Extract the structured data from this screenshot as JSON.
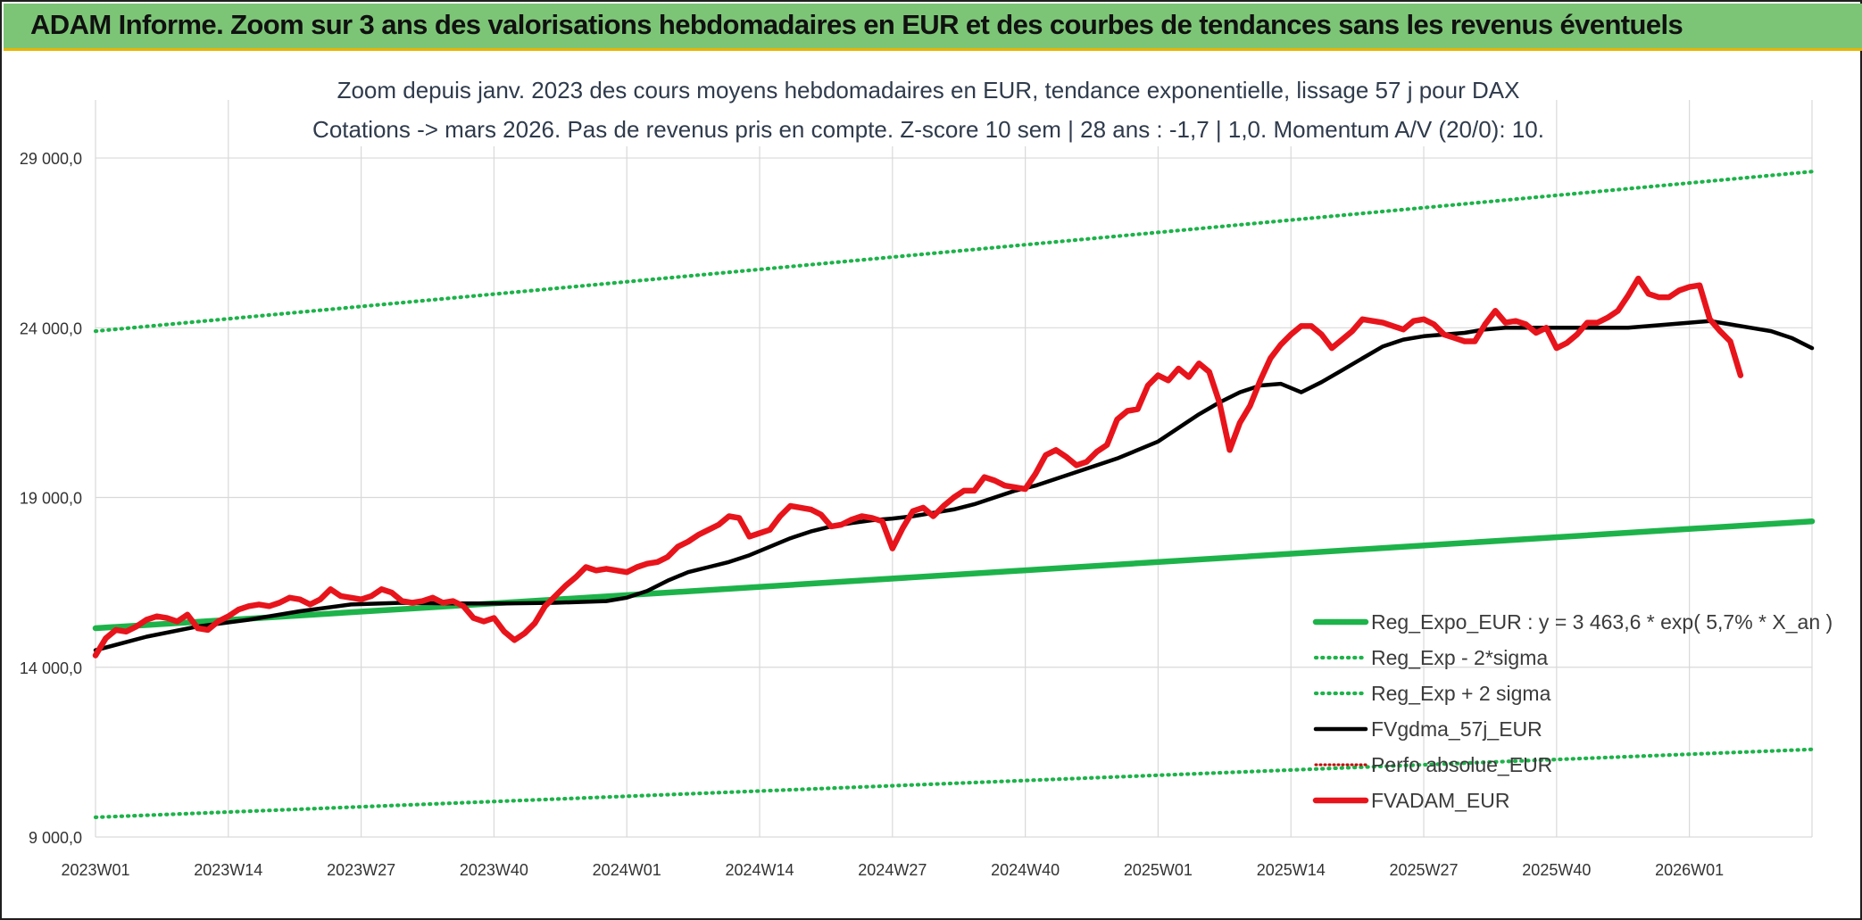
{
  "header": {
    "banner": "ADAM Informe. Zoom sur 3 ans des valorisations hebdomadaires en EUR et des courbes de tendances sans les revenus éventuels"
  },
  "chart_data": {
    "type": "line",
    "title": "Zoom depuis janv. 2023 des cours moyens hebdomadaires en EUR, tendance exponentielle, lissage 57 j pour DAX",
    "subtitle": "Cotations -> mars 2026. Pas de revenus pris en compte. Z-score 10 sem | 28 ans : -1,7 | 1,0. Momentum A/V (20/0): 10.",
    "xlabel": "",
    "ylabel": "",
    "ylim": [
      9000,
      30500
    ],
    "y_ticks": [
      9000,
      14000,
      19000,
      24000,
      29000
    ],
    "y_tick_labels": [
      "9 000,0",
      "14 000,0",
      "19 000,0",
      "24 000,0",
      "29 000,0"
    ],
    "x_tick_labels": [
      "2023W01",
      "2023W14",
      "2023W27",
      "2023W40",
      "2024W01",
      "2024W14",
      "2024W27",
      "2024W40",
      "2025W01",
      "2025W14",
      "2025W27",
      "2025W40",
      "2026W01"
    ],
    "x_tick_index": [
      0,
      13,
      26,
      39,
      52,
      65,
      78,
      91,
      104,
      117,
      130,
      143,
      156
    ],
    "x_count": 169,
    "grid": true,
    "legend_position": "bottom-right",
    "series": [
      {
        "name": "Reg_Expo_EUR : y = 3 463,6 * exp( 5,7% *  X_an )",
        "color": "#1db34a",
        "style": "solid-thick",
        "points": [
          [
            0,
            15150
          ],
          [
            168,
            18300
          ]
        ]
      },
      {
        "name": "Reg_Exp - 2*sigma",
        "color": "#1db34a",
        "style": "dotted",
        "points": [
          [
            0,
            9580
          ],
          [
            168,
            11580
          ]
        ]
      },
      {
        "name": "Reg_Exp + 2 sigma",
        "color": "#1db34a",
        "style": "dotted",
        "points": [
          [
            0,
            23900
          ],
          [
            168,
            28600
          ]
        ]
      },
      {
        "name": "FVgdma_57j_EUR",
        "color": "#000000",
        "style": "solid",
        "points": [
          [
            0,
            14500
          ],
          [
            5,
            14900
          ],
          [
            10,
            15200
          ],
          [
            15,
            15400
          ],
          [
            20,
            15650
          ],
          [
            25,
            15850
          ],
          [
            30,
            15900
          ],
          [
            35,
            15880
          ],
          [
            40,
            15880
          ],
          [
            45,
            15900
          ],
          [
            50,
            15950
          ],
          [
            52,
            16050
          ],
          [
            54,
            16250
          ],
          [
            56,
            16550
          ],
          [
            58,
            16800
          ],
          [
            60,
            16950
          ],
          [
            62,
            17100
          ],
          [
            64,
            17300
          ],
          [
            66,
            17550
          ],
          [
            68,
            17800
          ],
          [
            70,
            18000
          ],
          [
            72,
            18150
          ],
          [
            74,
            18250
          ],
          [
            76,
            18330
          ],
          [
            78,
            18380
          ],
          [
            80,
            18450
          ],
          [
            82,
            18550
          ],
          [
            84,
            18650
          ],
          [
            86,
            18800
          ],
          [
            88,
            19000
          ],
          [
            90,
            19200
          ],
          [
            92,
            19350
          ],
          [
            94,
            19550
          ],
          [
            96,
            19750
          ],
          [
            98,
            19950
          ],
          [
            100,
            20150
          ],
          [
            102,
            20400
          ],
          [
            104,
            20650
          ],
          [
            106,
            21050
          ],
          [
            108,
            21450
          ],
          [
            110,
            21800
          ],
          [
            112,
            22100
          ],
          [
            114,
            22300
          ],
          [
            116,
            22350
          ],
          [
            118,
            22100
          ],
          [
            120,
            22400
          ],
          [
            122,
            22750
          ],
          [
            124,
            23100
          ],
          [
            126,
            23450
          ],
          [
            128,
            23650
          ],
          [
            130,
            23750
          ],
          [
            132,
            23800
          ],
          [
            134,
            23850
          ],
          [
            136,
            23950
          ],
          [
            138,
            24000
          ],
          [
            140,
            24000
          ],
          [
            142,
            24000
          ],
          [
            144,
            24000
          ],
          [
            146,
            24000
          ],
          [
            148,
            24000
          ],
          [
            150,
            24000
          ],
          [
            152,
            24050
          ],
          [
            154,
            24100
          ],
          [
            156,
            24150
          ],
          [
            158,
            24200
          ],
          [
            160,
            24100
          ],
          [
            162,
            24000
          ],
          [
            164,
            23900
          ],
          [
            166,
            23700
          ],
          [
            168,
            23400
          ]
        ]
      },
      {
        "name": "Perfo absolue_EUR",
        "color": "#c00000",
        "style": "dotted-thin",
        "points": []
      },
      {
        "name": "FVADAM_EUR",
        "color": "#e8141b",
        "style": "solid-thick",
        "points": [
          [
            0,
            14350
          ],
          [
            1,
            14850
          ],
          [
            2,
            15100
          ],
          [
            3,
            15050
          ],
          [
            4,
            15200
          ],
          [
            5,
            15400
          ],
          [
            6,
            15500
          ],
          [
            7,
            15450
          ],
          [
            8,
            15350
          ],
          [
            9,
            15550
          ],
          [
            10,
            15150
          ],
          [
            11,
            15100
          ],
          [
            12,
            15350
          ],
          [
            13,
            15500
          ],
          [
            14,
            15700
          ],
          [
            15,
            15800
          ],
          [
            16,
            15850
          ],
          [
            17,
            15800
          ],
          [
            18,
            15900
          ],
          [
            19,
            16050
          ],
          [
            20,
            16000
          ],
          [
            21,
            15850
          ],
          [
            22,
            16000
          ],
          [
            23,
            16300
          ],
          [
            24,
            16100
          ],
          [
            25,
            16050
          ],
          [
            26,
            16000
          ],
          [
            27,
            16100
          ],
          [
            28,
            16300
          ],
          [
            29,
            16200
          ],
          [
            30,
            15950
          ],
          [
            31,
            15900
          ],
          [
            32,
            15950
          ],
          [
            33,
            16050
          ],
          [
            34,
            15900
          ],
          [
            35,
            15950
          ],
          [
            36,
            15800
          ],
          [
            37,
            15450
          ],
          [
            38,
            15350
          ],
          [
            39,
            15450
          ],
          [
            40,
            15050
          ],
          [
            41,
            14800
          ],
          [
            42,
            15000
          ],
          [
            43,
            15300
          ],
          [
            44,
            15800
          ],
          [
            45,
            16100
          ],
          [
            46,
            16400
          ],
          [
            47,
            16650
          ],
          [
            48,
            16950
          ],
          [
            49,
            16850
          ],
          [
            50,
            16900
          ],
          [
            51,
            16850
          ],
          [
            52,
            16800
          ],
          [
            53,
            16950
          ],
          [
            54,
            17050
          ],
          [
            55,
            17100
          ],
          [
            56,
            17250
          ],
          [
            57,
            17550
          ],
          [
            58,
            17700
          ],
          [
            59,
            17900
          ],
          [
            60,
            18050
          ],
          [
            61,
            18200
          ],
          [
            62,
            18450
          ],
          [
            63,
            18400
          ],
          [
            64,
            17850
          ],
          [
            65,
            17950
          ],
          [
            66,
            18050
          ],
          [
            67,
            18450
          ],
          [
            68,
            18750
          ],
          [
            69,
            18700
          ],
          [
            70,
            18650
          ],
          [
            71,
            18500
          ],
          [
            72,
            18150
          ],
          [
            73,
            18200
          ],
          [
            74,
            18350
          ],
          [
            75,
            18450
          ],
          [
            76,
            18400
          ],
          [
            77,
            18300
          ],
          [
            78,
            17500
          ],
          [
            79,
            18100
          ],
          [
            80,
            18600
          ],
          [
            81,
            18700
          ],
          [
            82,
            18450
          ],
          [
            83,
            18750
          ],
          [
            84,
            19000
          ],
          [
            85,
            19200
          ],
          [
            86,
            19200
          ],
          [
            87,
            19600
          ],
          [
            88,
            19500
          ],
          [
            89,
            19350
          ],
          [
            90,
            19300
          ],
          [
            91,
            19250
          ],
          [
            92,
            19700
          ],
          [
            93,
            20250
          ],
          [
            94,
            20400
          ],
          [
            95,
            20200
          ],
          [
            96,
            19950
          ],
          [
            97,
            20050
          ],
          [
            98,
            20350
          ],
          [
            99,
            20550
          ],
          [
            100,
            21300
          ],
          [
            101,
            21550
          ],
          [
            102,
            21600
          ],
          [
            103,
            22300
          ],
          [
            104,
            22600
          ],
          [
            105,
            22450
          ],
          [
            106,
            22800
          ],
          [
            107,
            22550
          ],
          [
            108,
            22950
          ],
          [
            109,
            22700
          ],
          [
            110,
            21800
          ],
          [
            111,
            20400
          ],
          [
            112,
            21200
          ],
          [
            113,
            21700
          ],
          [
            114,
            22450
          ],
          [
            115,
            23100
          ],
          [
            116,
            23500
          ],
          [
            117,
            23800
          ],
          [
            118,
            24050
          ],
          [
            119,
            24050
          ],
          [
            120,
            23800
          ],
          [
            121,
            23400
          ],
          [
            122,
            23650
          ],
          [
            123,
            23900
          ],
          [
            124,
            24250
          ],
          [
            125,
            24200
          ],
          [
            126,
            24150
          ],
          [
            127,
            24050
          ],
          [
            128,
            23950
          ],
          [
            129,
            24200
          ],
          [
            130,
            24250
          ],
          [
            131,
            24100
          ],
          [
            132,
            23800
          ],
          [
            133,
            23700
          ],
          [
            134,
            23600
          ],
          [
            135,
            23600
          ],
          [
            136,
            24100
          ],
          [
            137,
            24500
          ],
          [
            138,
            24150
          ],
          [
            139,
            24200
          ],
          [
            140,
            24100
          ],
          [
            141,
            23850
          ],
          [
            142,
            24000
          ],
          [
            143,
            23400
          ],
          [
            144,
            23550
          ],
          [
            145,
            23800
          ],
          [
            146,
            24150
          ],
          [
            147,
            24150
          ],
          [
            148,
            24300
          ],
          [
            149,
            24500
          ],
          [
            150,
            24950
          ],
          [
            151,
            25450
          ],
          [
            152,
            25000
          ],
          [
            153,
            24900
          ],
          [
            154,
            24900
          ],
          [
            155,
            25100
          ],
          [
            156,
            25200
          ],
          [
            157,
            25250
          ],
          [
            158,
            24250
          ],
          [
            159,
            23900
          ],
          [
            160,
            23600
          ],
          [
            161,
            22600
          ]
        ]
      }
    ]
  }
}
